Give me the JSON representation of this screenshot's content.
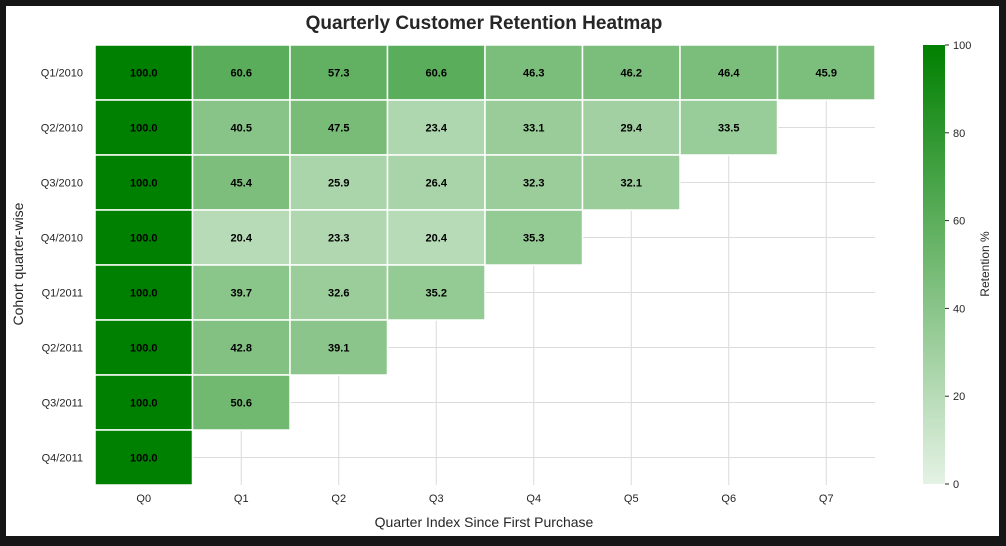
{
  "chart_data": {
    "type": "heatmap",
    "title": "Quarterly Customer Retention Heatmap",
    "xlabel": "Quarter Index Since First Purchase",
    "ylabel": "Cohort quarter-wise",
    "x_categories": [
      "Q0",
      "Q1",
      "Q2",
      "Q3",
      "Q4",
      "Q5",
      "Q6",
      "Q7"
    ],
    "y_categories": [
      "Q1/2010",
      "Q2/2010",
      "Q3/2010",
      "Q4/2010",
      "Q1/2011",
      "Q2/2011",
      "Q3/2011",
      "Q4/2011"
    ],
    "values": [
      [
        "100.0",
        "60.6",
        "57.3",
        "60.6",
        "46.3",
        "46.2",
        "46.4",
        "45.9"
      ],
      [
        "100.0",
        "40.5",
        "47.5",
        "23.4",
        "33.1",
        "29.4",
        "33.5",
        null
      ],
      [
        "100.0",
        "45.4",
        "25.9",
        "26.4",
        "32.3",
        "32.1",
        null,
        null
      ],
      [
        "100.0",
        "20.4",
        "23.3",
        "20.4",
        "35.3",
        null,
        null,
        null
      ],
      [
        "100.0",
        "39.7",
        "32.6",
        "35.2",
        null,
        null,
        null,
        null
      ],
      [
        "100.0",
        "42.8",
        "39.1",
        null,
        null,
        null,
        null,
        null
      ],
      [
        "100.0",
        "50.6",
        null,
        null,
        null,
        null,
        null,
        null
      ],
      [
        "100.0",
        null,
        null,
        null,
        null,
        null,
        null,
        null
      ]
    ],
    "colorbar": {
      "label": "Retention %",
      "range": [
        0,
        100
      ],
      "ticks": [
        "0",
        "20",
        "40",
        "60",
        "80",
        "100"
      ],
      "color_low": "#e5f2e5",
      "color_high": "#008000"
    },
    "grid": true
  }
}
